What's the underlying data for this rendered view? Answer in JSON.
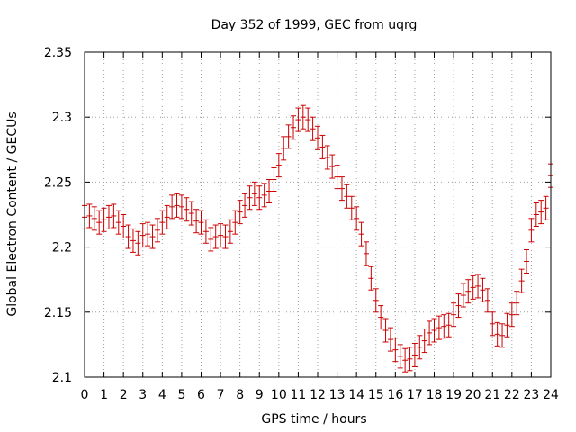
{
  "chart_data": {
    "type": "line",
    "title": "Day 352 of 1999, GEC from uqrg",
    "xlabel": "GPS time / hours",
    "ylabel": "Global Electron Content / GECUs",
    "xlim": [
      0,
      24
    ],
    "ylim": [
      2.1,
      2.35
    ],
    "x_ticks": [
      "0",
      "1",
      "2",
      "3",
      "4",
      "5",
      "6",
      "7",
      "8",
      "9",
      "10",
      "11",
      "12",
      "13",
      "14",
      "15",
      "16",
      "17",
      "18",
      "19",
      "20",
      "21",
      "22",
      "23",
      "24"
    ],
    "y_ticks": [
      "2.1",
      "2.15",
      "2.2",
      "2.25",
      "2.3",
      "2.35"
    ],
    "grid": true,
    "series_color": "#cc0000",
    "series": [
      {
        "name": "GEC",
        "error": 0.009,
        "x": [
          0,
          0.25,
          0.5,
          0.75,
          1,
          1.25,
          1.5,
          1.75,
          2,
          2.25,
          2.5,
          2.75,
          3,
          3.25,
          3.5,
          3.75,
          4,
          4.25,
          4.5,
          4.75,
          5,
          5.25,
          5.5,
          5.75,
          6,
          6.25,
          6.5,
          6.75,
          7,
          7.25,
          7.5,
          7.75,
          8,
          8.25,
          8.5,
          8.75,
          9,
          9.25,
          9.5,
          9.75,
          10,
          10.25,
          10.5,
          10.75,
          11,
          11.25,
          11.5,
          11.75,
          12,
          12.25,
          12.5,
          12.75,
          13,
          13.25,
          13.5,
          13.75,
          14,
          14.25,
          14.5,
          14.75,
          15,
          15.25,
          15.5,
          15.75,
          16,
          16.25,
          16.5,
          16.75,
          17,
          17.25,
          17.5,
          17.75,
          18,
          18.25,
          18.5,
          18.75,
          19,
          19.25,
          19.5,
          19.75,
          20,
          20.25,
          20.5,
          20.75,
          21,
          21.25,
          21.5,
          21.75,
          22,
          22.25,
          22.5,
          22.75,
          23,
          23.25,
          23.5,
          23.75,
          24
        ],
        "y": [
          2.223,
          2.224,
          2.222,
          2.219,
          2.221,
          2.223,
          2.224,
          2.219,
          2.216,
          2.208,
          2.205,
          2.203,
          2.209,
          2.21,
          2.208,
          2.213,
          2.219,
          2.223,
          2.231,
          2.232,
          2.231,
          2.229,
          2.226,
          2.22,
          2.219,
          2.212,
          2.206,
          2.208,
          2.209,
          2.208,
          2.212,
          2.219,
          2.227,
          2.232,
          2.238,
          2.241,
          2.238,
          2.24,
          2.243,
          2.252,
          2.263,
          2.276,
          2.285,
          2.292,
          2.298,
          2.3,
          2.298,
          2.291,
          2.284,
          2.277,
          2.269,
          2.262,
          2.254,
          2.245,
          2.239,
          2.23,
          2.222,
          2.21,
          2.195,
          2.176,
          2.159,
          2.146,
          2.136,
          2.129,
          2.121,
          2.116,
          2.113,
          2.114,
          2.117,
          2.123,
          2.128,
          2.134,
          2.136,
          2.138,
          2.139,
          2.14,
          2.148,
          2.155,
          2.163,
          2.166,
          2.169,
          2.17,
          2.167,
          2.159,
          2.141,
          2.133,
          2.132,
          2.14,
          2.148,
          2.157,
          2.174,
          2.189,
          2.213,
          2.225,
          2.227,
          2.23,
          2.255
        ]
      }
    ]
  }
}
